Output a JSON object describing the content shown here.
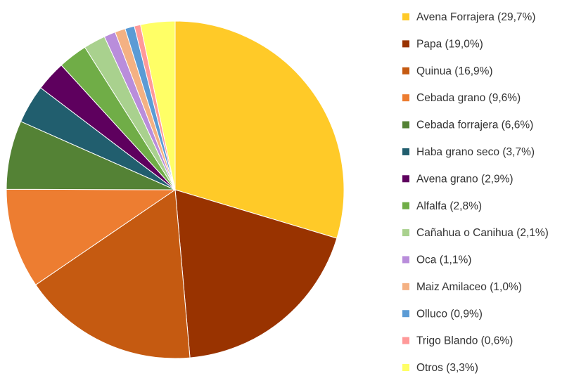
{
  "chart_data": {
    "type": "pie",
    "categories": [
      "Avena Forrajera (29,7%)",
      "Papa  (19,0%)",
      "Quinua (16,9%)",
      "Cebada grano (9,6%)",
      "Cebada  forrajera (6,6%)",
      "Haba grano seco (3,7%)",
      "Avena grano (2,9%)",
      "Alfalfa (2,8%)",
      "Cañahua o Canihua (2,1%)",
      "Oca (1,1%)",
      "Maiz Amilaceo (1,0%)",
      "Olluco (0,9%)",
      "Trigo Blando (0,6%)",
      "Otros (3,3%)"
    ],
    "values": [
      29.7,
      19.0,
      16.9,
      9.6,
      6.6,
      3.7,
      2.9,
      2.8,
      2.1,
      1.1,
      1.0,
      0.9,
      0.6,
      3.3
    ],
    "colors": [
      "#ffca28",
      "#993300",
      "#c55a11",
      "#ed7d31",
      "#548235",
      "#215e6e",
      "#5e005e",
      "#70ad47",
      "#a9d18e",
      "#b98ddb",
      "#f4b183",
      "#5b9bd5",
      "#ff9999",
      "#ffff66"
    ],
    "legend": "right"
  }
}
